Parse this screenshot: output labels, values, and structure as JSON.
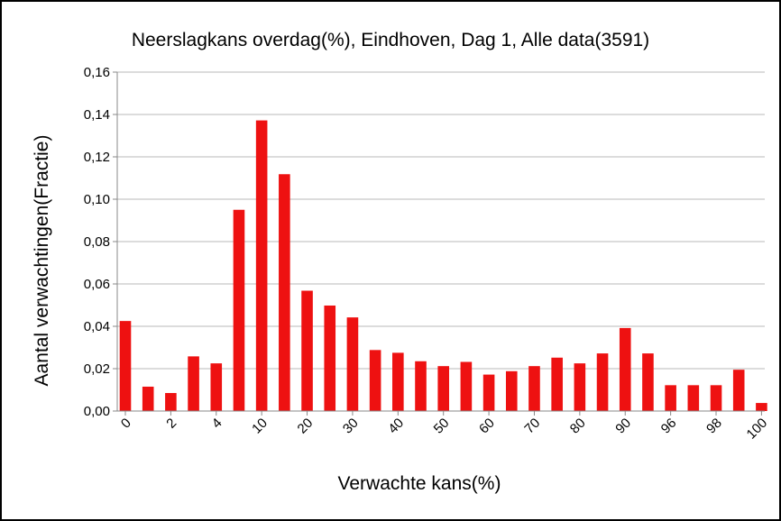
{
  "chart_data": {
    "type": "bar",
    "title": "Neerslagkans overdag(%), Eindhoven, Dag 1, Alle data(3591)",
    "xlabel": "Verwachte kans(%)",
    "ylabel": "Aantal verwachtingen(Fractie)",
    "ylim": [
      0,
      0.16
    ],
    "y_ticks": [
      "0,00",
      "0,02",
      "0,04",
      "0,06",
      "0,08",
      "0,10",
      "0,12",
      "0,14",
      "0,16"
    ],
    "grid": true,
    "bar_color": "#ee1111",
    "categories": [
      "0",
      "1",
      "2",
      "3",
      "4",
      "5",
      "10",
      "15",
      "20",
      "25",
      "30",
      "35",
      "40",
      "45",
      "50",
      "55",
      "60",
      "65",
      "70",
      "75",
      "80",
      "85",
      "90",
      "95",
      "96",
      "97",
      "98",
      "99",
      "100"
    ],
    "x_tick_labels": [
      "0",
      "2",
      "4",
      "10",
      "20",
      "30",
      "40",
      "50",
      "60",
      "70",
      "80",
      "90",
      "96",
      "98",
      "100"
    ],
    "values": [
      0.0425,
      0.0115,
      0.0085,
      0.0258,
      0.0225,
      0.095,
      0.1372,
      0.1118,
      0.0568,
      0.0498,
      0.0442,
      0.0288,
      0.0275,
      0.0235,
      0.0212,
      0.0232,
      0.0172,
      0.0188,
      0.0212,
      0.0252,
      0.0225,
      0.0272,
      0.0392,
      0.0272,
      0.0122,
      0.0122,
      0.0122,
      0.0195,
      0.0038
    ]
  }
}
